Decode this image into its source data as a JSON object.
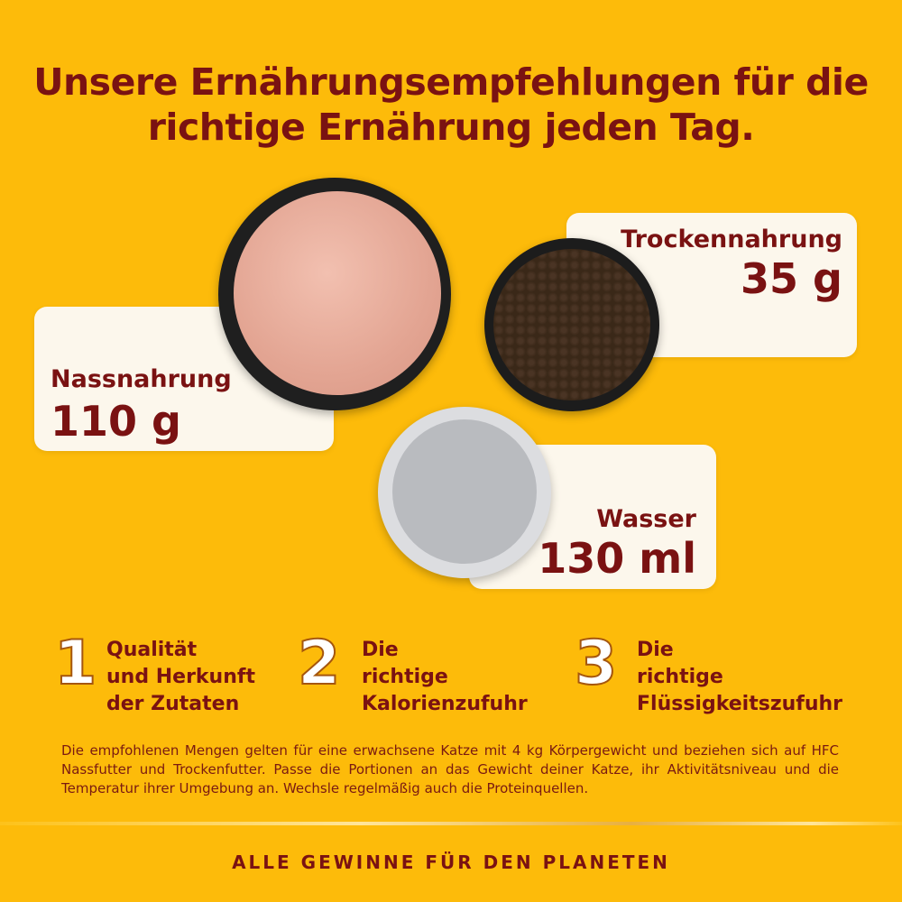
{
  "title": "Unsere Ernährungsempfehlungen für die richtige Ernährung jeden Tag.",
  "portions": {
    "wet": {
      "label": "Nassnahrung",
      "amount": "110 g"
    },
    "dry": {
      "label": "Trockennahrung",
      "amount": "35 g"
    },
    "water": {
      "label": "Wasser",
      "amount": "130 ml"
    }
  },
  "features": [
    {
      "number": "1",
      "text": "Qualität\nund Herkunft\nder Zutaten"
    },
    {
      "number": "2",
      "text": "Die\nrichtige\nKalorienzufuhr"
    },
    {
      "number": "3",
      "text": "Die\nrichtige\nFlüssigkeitszufuhr"
    }
  ],
  "note": "Die empfohlenen Mengen gelten für eine erwachsene Katze mit 4 kg Körpergewicht und beziehen sich auf HFC Nassfutter und Trockenfutter. Passe die Portionen an das Gewicht deiner Katze, ihr Aktivitätsniveau und die Temperatur ihrer Umgebung an. Wechsle regelmäßig auch die Proteinquellen.",
  "footer": "ALLE GEWINNE FÜR DEN PLANETEN",
  "colors": {
    "background": "#fdbb0a",
    "text": "#7a1212",
    "card": "#fcf7ec"
  }
}
